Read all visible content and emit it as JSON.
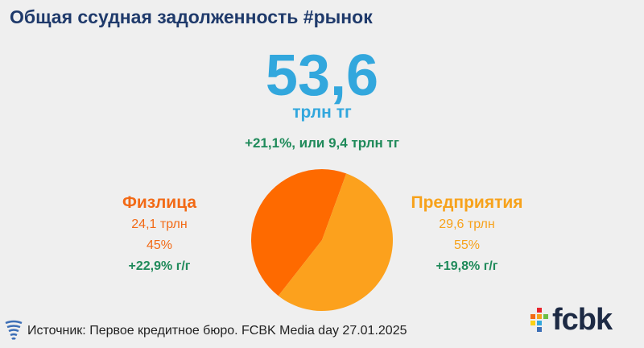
{
  "header": {
    "title": "Общая ссудная задолженность #рынок"
  },
  "total": {
    "value": "53,6",
    "unit": "трлн тг",
    "growth": "+21,1%, или 9,4 трлн тг"
  },
  "left": {
    "name": "Физлица",
    "amount": "24,1 трлн",
    "share": "45%",
    "growth": "+22,9% г/г"
  },
  "right": {
    "name": "Предприятия",
    "amount": "29,6 трлн",
    "share": "55%",
    "growth": "+19,8% г/г"
  },
  "chart_data": {
    "type": "pie",
    "title": "",
    "slices": [
      {
        "label": "Физлица",
        "value": 45,
        "color": "#fe6a00"
      },
      {
        "label": "Предприятия",
        "value": 55,
        "color": "#fca11d"
      }
    ]
  },
  "footer": {
    "source": "Источник: Первое кредитное бюро. FCBK Media day 27.01.2025",
    "logo_text": "fcbk"
  },
  "colors": {
    "title": "#1f3a6b",
    "accent": "#32a7dd",
    "growth": "#1f8a5a",
    "individuals": "#f26a16",
    "enterprises": "#f7a21b"
  }
}
